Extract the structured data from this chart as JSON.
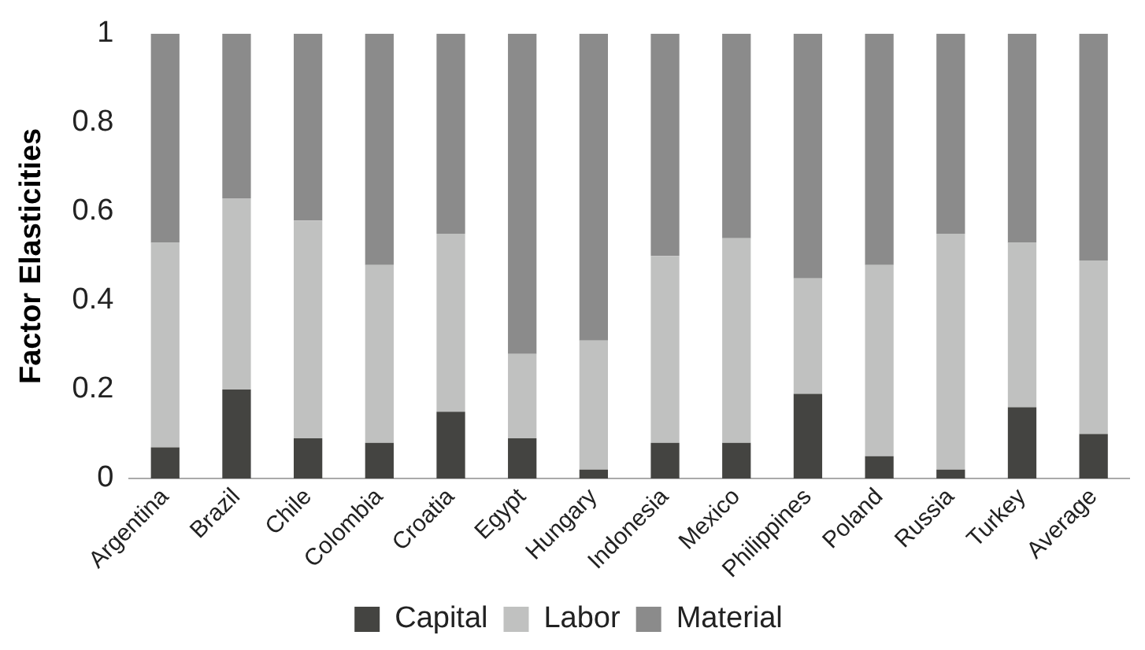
{
  "chart_data": {
    "type": "bar",
    "stacked": true,
    "ylabel": "Factor Elasticities",
    "categories": [
      "Argentina",
      "Brazil",
      "Chile",
      "Colombia",
      "Croatia",
      "Egypt",
      "Hungary",
      "Indonesia",
      "Mexico",
      "Philippines",
      "Poland",
      "Russia",
      "Turkey",
      "Average"
    ],
    "series": [
      {
        "name": "Capital",
        "color": "#444441",
        "values": [
          0.07,
          0.2,
          0.09,
          0.08,
          0.15,
          0.09,
          0.02,
          0.08,
          0.08,
          0.19,
          0.05,
          0.02,
          0.16,
          0.1
        ]
      },
      {
        "name": "Labor",
        "color": "#c0c1c0",
        "values": [
          0.46,
          0.43,
          0.49,
          0.4,
          0.4,
          0.19,
          0.29,
          0.42,
          0.46,
          0.26,
          0.43,
          0.53,
          0.37,
          0.39
        ]
      },
      {
        "name": "Material",
        "color": "#8b8b8b",
        "values": [
          0.47,
          0.37,
          0.42,
          0.52,
          0.45,
          0.72,
          0.69,
          0.5,
          0.46,
          0.55,
          0.52,
          0.45,
          0.47,
          0.51
        ]
      }
    ],
    "ylim": [
      0,
      1
    ],
    "yticks": [
      0,
      0.2,
      0.4,
      0.6,
      0.8,
      1
    ],
    "grid": false,
    "legend": "bottom"
  }
}
